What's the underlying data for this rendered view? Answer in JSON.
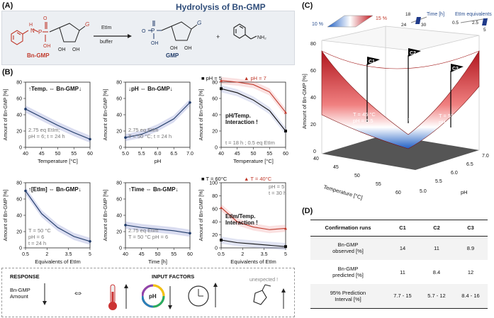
{
  "panels": {
    "a": "(A)",
    "b": "(B)",
    "c": "(C)",
    "d": "(D)"
  },
  "panel_a": {
    "title": "Hydrolysis of Bn-GMP",
    "reactant": "Bn-GMP",
    "product": "GMP",
    "reagent": "EtIm",
    "condition": "buffer",
    "plus": "+",
    "base_letter": "G",
    "oh": "OH",
    "nh2": "NH₂",
    "hn": "H",
    "n": "N",
    "p": "P",
    "o": "O"
  },
  "plots": [
    {
      "id": "temp",
      "title_pre": "↑Temp.",
      "arrow": "⇔",
      "title_post": "Bn-GMP↓",
      "ylabel": "Amount of Bn-GMP [%]",
      "xlabel": "Temperature [°C]",
      "xticks": [
        "40",
        "45",
        "50",
        "55",
        "60"
      ],
      "yticks": [
        "0",
        "20",
        "40",
        "60",
        "80"
      ],
      "note": [
        "2.75 eq EtIm;",
        "pH = 6; t = 24 h"
      ]
    },
    {
      "id": "ph",
      "title_pre": "↓pH",
      "arrow": "⇔",
      "title_post": "Bn-GMP↓",
      "ylabel": "Amount of Bn-GMP [%]",
      "xlabel": "pH",
      "xticks": [
        "5.0",
        "5.5",
        "6.0",
        "6.5",
        "7.0"
      ],
      "yticks": [
        "0",
        "20",
        "40",
        "60",
        "80"
      ],
      "note": [
        "2.75 eq EtIm",
        "T = 50 °C; t = 24 h"
      ]
    },
    {
      "id": "phtemp",
      "title_pre": "",
      "arrow": "",
      "title_post": "",
      "ylabel": "Amount of Bn-GMP [%]",
      "xlabel": "Temperature [°C]",
      "xticks": [
        "40",
        "45",
        "50",
        "55",
        "60"
      ],
      "yticks": [
        "0",
        "20",
        "40",
        "60",
        "80"
      ],
      "legend": [
        "■ pH = 5",
        "▲ pH = 7"
      ],
      "interaction": [
        "pH/Temp.",
        "Interaction !"
      ],
      "note": [
        "t = 18 h ; 0.5 eq EtIm"
      ]
    },
    {
      "id": "etim",
      "title_pre": "↑[EtIm]",
      "arrow": "⇔",
      "title_post": "Bn-GMP↓",
      "ylabel": "Amount of Bn-GMP [%]",
      "xlabel": "Equivalents of EtIm",
      "xticks": [
        "0.5",
        "2",
        "3.5",
        "5"
      ],
      "yticks": [
        "0",
        "20",
        "40",
        "60",
        "80"
      ],
      "note": [
        "T = 50 °C",
        "pH = 6",
        "t = 24 h"
      ]
    },
    {
      "id": "time",
      "title_pre": "↑Time",
      "arrow": "⇔",
      "title_post": "Bn-GMP↓",
      "ylabel": "Amount of Bn-GMP [%]",
      "xlabel": "Time [h]",
      "xticks": [
        "40",
        "45",
        "50",
        "55",
        "60"
      ],
      "yticks": [
        "0",
        "20",
        "40",
        "60",
        "80"
      ],
      "note": [
        "2.75 eq EtIm",
        "T = 50 °C  pH = 6"
      ]
    },
    {
      "id": "etimtemp",
      "title_pre": "",
      "arrow": "",
      "title_post": "",
      "ylabel": "Amount of Bn-GMP [%]",
      "xlabel": "Equivalents of EtIm",
      "xticks": [
        "0.5",
        "2",
        "3.5",
        "5"
      ],
      "yticks": [
        "0",
        "20",
        "40",
        "60",
        "80",
        "100"
      ],
      "legend": [
        "■ T = 60°C",
        "▲ T = 40°C"
      ],
      "interaction": [
        "EtIm/Temp.",
        "Interaction !"
      ],
      "note": [
        "pH = 5",
        "t = 30 h"
      ]
    }
  ],
  "chart_data": [
    {
      "type": "line",
      "id": "temp",
      "x": [
        40,
        45,
        50,
        55,
        60
      ],
      "series": [
        {
          "values": [
            47,
            37,
            27,
            18,
            10
          ]
        }
      ],
      "ylim": [
        0,
        80
      ]
    },
    {
      "type": "line",
      "id": "ph",
      "x": [
        5.0,
        5.5,
        6.0,
        6.5,
        7.0
      ],
      "series": [
        {
          "values": [
            12,
            16,
            24,
            35,
            55
          ]
        }
      ],
      "ylim": [
        0,
        80
      ]
    },
    {
      "type": "line",
      "id": "phtemp",
      "x": [
        40,
        45,
        50,
        55,
        60
      ],
      "series": [
        {
          "name": "pH = 5",
          "values": [
            72,
            67,
            58,
            45,
            20
          ]
        },
        {
          "name": "pH = 7",
          "values": [
            82,
            80,
            77,
            68,
            43
          ]
        }
      ],
      "ylim": [
        0,
        80
      ]
    },
    {
      "type": "line",
      "id": "etim",
      "x": [
        0.5,
        1.625,
        2.75,
        3.875,
        5
      ],
      "series": [
        {
          "values": [
            70,
            42,
            25,
            14,
            8
          ]
        }
      ],
      "ylim": [
        0,
        80
      ]
    },
    {
      "type": "line",
      "id": "time",
      "x": [
        40,
        45,
        50,
        55,
        60
      ],
      "series": [
        {
          "values": [
            28,
            25,
            23,
            21,
            18
          ]
        }
      ],
      "ylim": [
        0,
        80
      ]
    },
    {
      "type": "line",
      "id": "etimtemp",
      "x": [
        0.5,
        1.625,
        2.75,
        3.875,
        5
      ],
      "series": [
        {
          "name": "T = 60°C",
          "values": [
            12,
            8,
            6,
            4,
            2
          ]
        },
        {
          "name": "T = 40°C",
          "values": [
            62,
            40,
            32,
            28,
            30
          ]
        }
      ],
      "ylim": [
        0,
        100
      ]
    }
  ],
  "response": {
    "response_title": "RESPONSE",
    "input_title": "INPUT FACTORS",
    "amount": [
      "Bn-GMP",
      "Amount"
    ],
    "unexpected": "unexpected !",
    "ph_icon": "pH",
    "equiv": "⇔"
  },
  "panel_c": {
    "zlabel": "Amount of Bn-GMP [%]",
    "xlabel": "Temperature [°C]",
    "ylabel": "pH",
    "zticks": [
      "0",
      "20",
      "40",
      "60",
      "80"
    ],
    "xticks": [
      "40",
      "45",
      "50",
      "55",
      "60"
    ],
    "yticks": [
      "5.0",
      "5.5",
      "6.0",
      "6.5",
      "7.0"
    ],
    "colorbar_low": "10 %",
    "colorbar_high": "15 %",
    "time_label": "Time [h]",
    "time_ticks": [
      "18",
      "24",
      "30"
    ],
    "etim_label": "EtIm equivalents",
    "etim_ticks": [
      "0.5",
      "2.5",
      "5"
    ],
    "flags": [
      "C1",
      "C2",
      "C3"
    ],
    "conditions": [
      [
        "T = 45 °C",
        "pH = 6.5"
      ],
      [
        "T = 50 °C",
        "pH = 6.0"
      ],
      [
        "T = 55 °C",
        "pH = 6.5"
      ]
    ]
  },
  "table_d": {
    "headers": [
      "Confirmation runs",
      "C1",
      "C2",
      "C3"
    ],
    "rows": [
      {
        "label": [
          "Bn-GMP",
          "observed [%]"
        ],
        "values": [
          "14",
          "11",
          "8.9"
        ]
      },
      {
        "label": [
          "Bn-GMP",
          "predicted [%]"
        ],
        "values": [
          "11",
          "8.4",
          "12"
        ]
      },
      {
        "label": [
          "95% Prediction",
          "Interval [%]"
        ],
        "values": [
          "7.7 - 15",
          "5.7 - 12",
          "8.4 - 16"
        ]
      }
    ]
  }
}
